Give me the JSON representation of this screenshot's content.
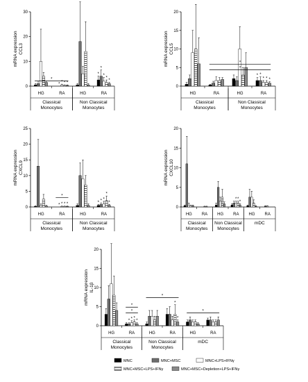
{
  "chart_data": [
    {
      "type": "bar",
      "id": "ccl3",
      "ylabel": [
        "mRNA expression",
        "CCL3"
      ],
      "ylim": [
        0,
        30
      ],
      "yticks": [
        0,
        10,
        20,
        30
      ],
      "groups": [
        {
          "name": "HG",
          "values": [
            0.5,
            1.0,
            10.0,
            4.0,
            1.5
          ],
          "err": [
            0.5,
            1.0,
            13.0,
            1.5,
            0.5
          ],
          "stars": []
        },
        {
          "name": "RA",
          "values": [
            0,
            0,
            0.5,
            0.3,
            0.3
          ],
          "err": [
            0,
            0,
            0.3,
            0.2,
            0.2
          ],
          "stars": [
            "*",
            "*",
            "*",
            "*"
          ]
        },
        {
          "name": "HG",
          "values": [
            0.5,
            18.0,
            5.0,
            14.0,
            0.5
          ],
          "err": [
            0.5,
            16.0,
            3.0,
            12.0,
            0.5
          ],
          "stars": []
        },
        {
          "name": "RA",
          "values": [
            2.5,
            4.0,
            2.0,
            1.5,
            1.0
          ],
          "err": [
            1.5,
            2.5,
            1.5,
            1.0,
            0.5
          ],
          "stars": [
            "*",
            "*",
            "*",
            "*",
            "*"
          ]
        }
      ],
      "sig": [
        {
          "from": 0,
          "to": 1
        }
      ],
      "bottom": [
        {
          "label": [
            "Classical",
            "Monocytes"
          ],
          "from": 0,
          "to": 1
        },
        {
          "label": [
            "Non Classical",
            "Monocytes"
          ],
          "from": 2,
          "to": 3
        }
      ]
    },
    {
      "type": "bar",
      "id": "ccl5",
      "ylabel": [
        "mRNA expression",
        "CCL5"
      ],
      "ylim": [
        0,
        20
      ],
      "yticks": [
        0,
        5,
        10,
        15,
        20
      ],
      "groups": [
        {
          "name": "HG",
          "values": [
            0.5,
            2.0,
            9.0,
            10.0,
            6.0
          ],
          "err": [
            0.5,
            1.0,
            6.0,
            12.0,
            7.0
          ],
          "stars": []
        },
        {
          "name": "RA",
          "values": [
            0.3,
            0.8,
            1.5,
            1.5,
            1.8
          ],
          "err": [
            0.2,
            0.5,
            1.0,
            0.8,
            0.5
          ],
          "stars": []
        },
        {
          "name": "HG",
          "values": [
            2.0,
            1.5,
            10.0,
            3.0,
            5.0
          ],
          "err": [
            1.0,
            1.0,
            6.0,
            2.0,
            4.0
          ],
          "stars": []
        },
        {
          "name": "RA",
          "values": [
            1.5,
            1.5,
            1.0,
            1.0,
            0.8
          ],
          "err": [
            0.8,
            1.0,
            0.5,
            0.5,
            0.4
          ],
          "stars": [
            "*",
            "*",
            "*",
            "*",
            "*"
          ]
        }
      ],
      "sig": [
        {
          "from": 1,
          "to": 3,
          "level": 4
        },
        {
          "from": 1,
          "to": 3,
          "level": 5.5
        }
      ],
      "bottom": [
        {
          "label": [
            "Classical",
            "Monocytes"
          ],
          "from": 0,
          "to": 1
        },
        {
          "label": [
            "Non Classical",
            "Monocytes"
          ],
          "from": 2,
          "to": 3
        }
      ]
    },
    {
      "type": "bar",
      "id": "cxcl9",
      "ylabel": [
        "mRNA expression",
        "CXCL9"
      ],
      "ylim": [
        0,
        25
      ],
      "yticks": [
        0,
        5,
        10,
        15,
        20,
        25
      ],
      "groups": [
        {
          "name": "HG",
          "values": [
            0.2,
            13.0,
            0.5,
            2.5,
            0.3
          ],
          "err": [
            0.2,
            8.5,
            0.5,
            1.5,
            0.2
          ],
          "stars": []
        },
        {
          "name": "RA",
          "values": [
            0,
            0,
            0.2,
            0.2,
            0.2
          ],
          "err": [
            0,
            0,
            0.1,
            0.1,
            0.1
          ],
          "stars": [
            "*",
            "*",
            "*",
            "*"
          ]
        },
        {
          "name": "HG",
          "values": [
            0.5,
            10.0,
            9.0,
            7.0,
            0.5
          ],
          "err": [
            0.5,
            4.0,
            6.0,
            3.0,
            0.5
          ],
          "stars": []
        },
        {
          "name": "RA",
          "values": [
            0.5,
            0.8,
            1.0,
            2.0,
            0.5
          ],
          "err": [
            0.3,
            0.5,
            0.8,
            1.5,
            0.3
          ],
          "stars": [
            "*",
            "*",
            "*",
            "*",
            "*"
          ]
        }
      ],
      "sig": [
        {
          "from": 1,
          "to": 1,
          "level": 2.5
        }
      ],
      "bottom": [
        {
          "label": [
            "Classical",
            "Monocytes"
          ],
          "from": 0,
          "to": 1
        },
        {
          "label": [
            "Non Classical",
            "Monocytes"
          ],
          "from": 2,
          "to": 3
        }
      ]
    },
    {
      "type": "bar",
      "id": "cxcl10",
      "ylabel": [
        "mRNA expression",
        "CXCL10"
      ],
      "ylim": [
        0,
        20
      ],
      "yticks": [
        0,
        5,
        10,
        15,
        20
      ],
      "groups": [
        {
          "name": "HG",
          "values": [
            0.3,
            11.0,
            0.5,
            0.3,
            0.3
          ],
          "err": [
            0.2,
            7.0,
            0.5,
            0.2,
            0.2
          ],
          "stars": []
        },
        {
          "name": "RA",
          "values": [
            0,
            0,
            0.1,
            0.1,
            0
          ],
          "err": [
            0,
            0,
            0.1,
            0.1,
            0
          ],
          "stars": []
        },
        {
          "name": "HG",
          "values": [
            0.5,
            5.0,
            1.5,
            2.5,
            0.8
          ],
          "err": [
            0.5,
            1.5,
            1.0,
            2.0,
            0.5
          ],
          "stars": []
        },
        {
          "name": "RA",
          "values": [
            0.5,
            1.0,
            1.0,
            1.0,
            0.5
          ],
          "err": [
            0.3,
            0.5,
            0.5,
            0.5,
            0.3
          ],
          "stars": [
            "*",
            "*",
            "*"
          ]
        },
        {
          "name": "HG",
          "values": [
            0.3,
            2.5,
            2.5,
            1.0,
            0.2
          ],
          "err": [
            0.2,
            2.0,
            1.5,
            0.8,
            0.1
          ],
          "stars": []
        },
        {
          "name": "RA",
          "values": [
            0,
            0.2,
            0.2,
            0,
            0
          ],
          "err": [
            0,
            0.1,
            0.1,
            0,
            0
          ],
          "stars": []
        }
      ],
      "sig": [],
      "bottom": [
        {
          "label": [
            "Classical",
            "Monocytes"
          ],
          "from": 0,
          "to": 1
        },
        {
          "label": [
            "Non Classical",
            "Monocytes"
          ],
          "from": 2,
          "to": 3
        },
        {
          "label": [
            "mDC"
          ],
          "from": 4,
          "to": 5
        }
      ]
    },
    {
      "type": "bar",
      "id": "il1b",
      "ylabel": [
        "mRNA expression",
        "IL-1β"
      ],
      "ylim": [
        0,
        20
      ],
      "yticks": [
        0,
        5,
        10,
        15,
        20
      ],
      "groups": [
        {
          "name": "HG",
          "values": [
            3.0,
            7.0,
            11.0,
            8.0,
            4.0
          ],
          "err": [
            1.5,
            3.5,
            10.5,
            5.0,
            2.0
          ],
          "stars": []
        },
        {
          "name": "RA",
          "values": [
            0.5,
            0.5,
            0.8,
            1.0,
            0.5
          ],
          "err": [
            0.3,
            0.3,
            0.5,
            0.5,
            0.3
          ],
          "stars": [
            "*",
            "*",
            "*",
            "*"
          ]
        },
        {
          "name": "HG",
          "values": [
            0.5,
            2.5,
            2.5,
            1.5,
            2.5
          ],
          "err": [
            0.5,
            1.5,
            1.5,
            1.0,
            1.5
          ],
          "stars": []
        },
        {
          "name": "RA",
          "values": [
            3.0,
            3.0,
            1.5,
            3.0,
            1.0
          ],
          "err": [
            1.5,
            2.0,
            1.0,
            2.5,
            0.5
          ],
          "stars": [
            "*",
            "*"
          ]
        },
        {
          "name": "HG",
          "values": [
            1.0,
            1.5,
            1.0,
            1.0,
            0.5
          ],
          "err": [
            0.5,
            0.8,
            0.5,
            0.5,
            0.3
          ],
          "stars": []
        },
        {
          "name": "RA",
          "values": [
            1.5,
            1.5,
            1.0,
            1.0,
            1.5
          ],
          "err": [
            0.5,
            0.8,
            0.5,
            0.5,
            0.8
          ],
          "stars": []
        }
      ],
      "sig": [
        {
          "from": 1,
          "to": 1,
          "level": 3
        },
        {
          "from": 1,
          "to": 1,
          "level": 4.5
        },
        {
          "from": 2,
          "to": 3,
          "level": 7
        },
        {
          "from": 4,
          "to": 5,
          "level": 3
        }
      ],
      "bottom": [
        {
          "label": [
            "Classical",
            "Monocytes"
          ],
          "from": 0,
          "to": 1
        },
        {
          "label": [
            "Non Classical",
            "Monocytes"
          ],
          "from": 2,
          "to": 3
        },
        {
          "label": [
            "mDC"
          ],
          "from": 4,
          "to": 5
        }
      ]
    }
  ],
  "legend": [
    {
      "label": "MNC",
      "fill": "#000000",
      "pattern": "solid"
    },
    {
      "label": "MNC+MSC",
      "fill": "#6e6e6e",
      "pattern": "solid"
    },
    {
      "label": "MNC+LPS+IFNγ",
      "fill": "#ffffff",
      "pattern": "solid"
    },
    {
      "label": "MNC+MSC+LPS+IFNγ",
      "fill": "#ffffff",
      "pattern": "hatch"
    },
    {
      "label": "MNC+MSC+Depletion+LPS+IFNγ",
      "fill": "#8a8a8a",
      "pattern": "solid"
    }
  ]
}
